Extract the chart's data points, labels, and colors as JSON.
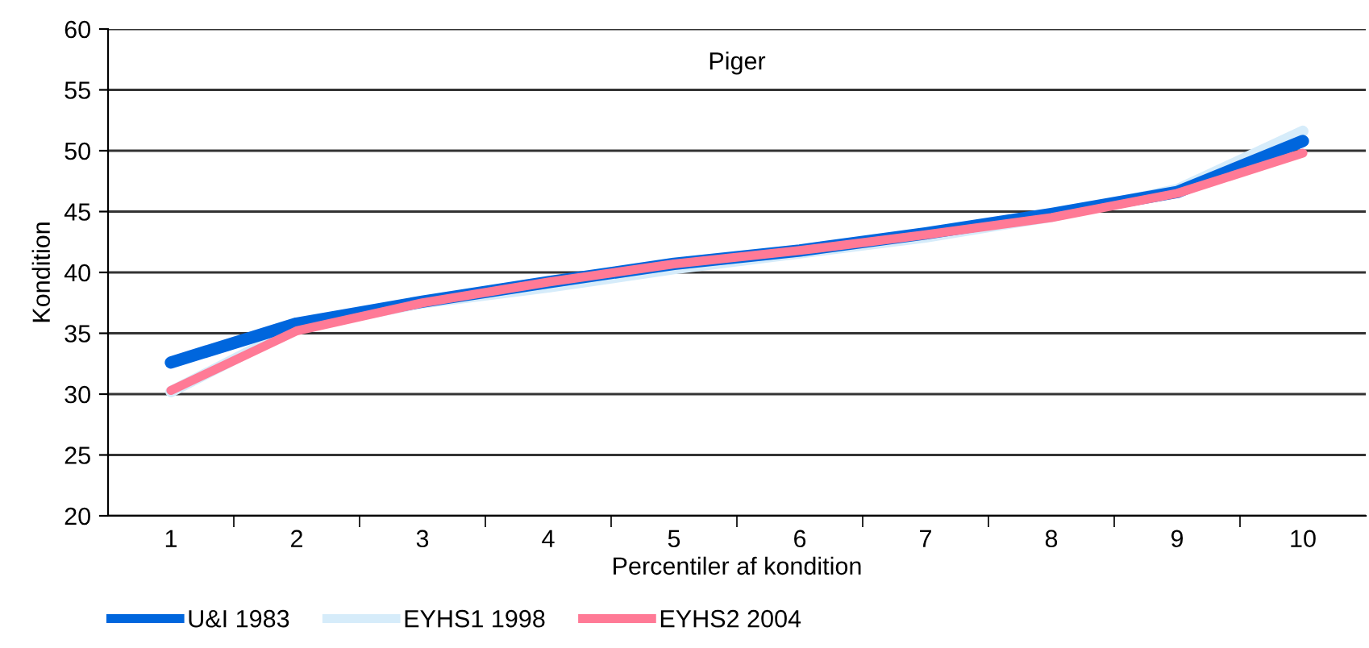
{
  "chart_data": {
    "type": "line",
    "title": "Piger",
    "xlabel": "Percentiler af kondition",
    "ylabel": "Kondition",
    "categories": [
      "1",
      "2",
      "3",
      "4",
      "5",
      "6",
      "7",
      "8",
      "9",
      "10"
    ],
    "series": [
      {
        "name": "U&I 1983",
        "color": "#0066dd",
        "values": [
          32.6,
          35.8,
          37.6,
          39.2,
          40.7,
          41.8,
          43.2,
          44.8,
          46.6,
          50.8
        ]
      },
      {
        "name": "EYHS1 1998",
        "color": "#d6ecfa",
        "values": [
          30.2,
          35.5,
          37.5,
          38.8,
          40.3,
          41.6,
          42.9,
          44.6,
          46.8,
          51.6
        ]
      },
      {
        "name": "EYHS2 2004",
        "color": "#ff7a96",
        "values": [
          30.3,
          35.2,
          37.5,
          39.2,
          40.7,
          41.8,
          43.1,
          44.5,
          46.5,
          49.8
        ]
      }
    ],
    "ylim": [
      20,
      60
    ],
    "yticks": [
      20,
      25,
      30,
      35,
      40,
      45,
      50,
      55,
      60
    ],
    "grid": "y",
    "legend": "bottom",
    "marker": "none",
    "line_style": "solid"
  }
}
